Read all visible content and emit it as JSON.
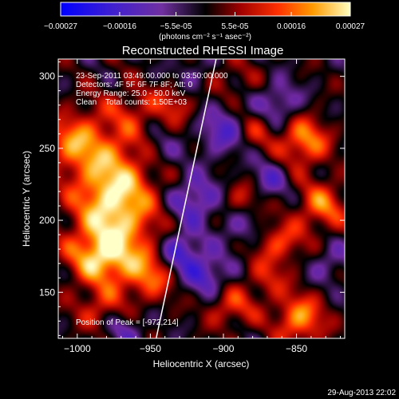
{
  "chart_data": {
    "type": "heatmap",
    "title": "Reconstructed RHESSI Image",
    "xlabel": "Heliocentric X (arcsec)",
    "ylabel": "Heliocentric Y (arcsec)",
    "xlim": [
      -1013,
      -817
    ],
    "ylim": [
      118,
      312
    ],
    "x_ticks": [
      -1000,
      -950,
      -900,
      -850
    ],
    "y_ticks": [
      150,
      200,
      250,
      300
    ],
    "colorbar": {
      "ticks": [
        -0.00027,
        -0.00016,
        -5.5e-05,
        5.5e-05,
        0.00016,
        0.00027
      ],
      "tick_labels": [
        "-0.00027",
        "-0.00016",
        "-5.5e-05",
        "5.5e-05",
        "0.00016",
        "0.00027"
      ],
      "range": [
        -0.00027,
        0.00027
      ],
      "units_label": "(photons cm⁻² s⁻¹ asec⁻²)"
    },
    "info_lines": [
      "23-Sep-2011 03:49:00.000 to 03:50:00.000",
      "Detectors: 4F 5F 6F 7F 8F; Att: 0",
      "Energy Range: 25.0 - 50.0 keV",
      "Clean    Total counts: 1.50E+03"
    ],
    "peak_label": "Position of Peak = [-972,214]",
    "peak": {
      "x": -972,
      "y": 214
    },
    "limb": [
      {
        "x": -946,
        "y": 118
      },
      {
        "x": -905,
        "y": 312
      }
    ],
    "sources": [
      {
        "x": -975,
        "y": 213,
        "sx": 20,
        "sy": 34,
        "a": 1.0
      },
      {
        "x": -1003,
        "y": 255,
        "sx": 14,
        "sy": 14,
        "a": 0.55
      },
      {
        "x": -985,
        "y": 174,
        "sx": 15,
        "sy": 12,
        "a": 0.55
      },
      {
        "x": -950,
        "y": 162,
        "sx": 12,
        "sy": 12,
        "a": 0.5
      },
      {
        "x": -985,
        "y": 138,
        "sx": 12,
        "sy": 10,
        "a": 0.35
      },
      {
        "x": -960,
        "y": 278,
        "sx": 14,
        "sy": 10,
        "a": 0.25
      },
      {
        "x": -932,
        "y": 283,
        "sx": 10,
        "sy": 10,
        "a": 0.4
      },
      {
        "x": -898,
        "y": 298,
        "sx": 14,
        "sy": 10,
        "a": 0.25
      },
      {
        "x": -845,
        "y": 255,
        "sx": 12,
        "sy": 12,
        "a": 0.7
      },
      {
        "x": -833,
        "y": 210,
        "sx": 12,
        "sy": 12,
        "a": 0.6
      },
      {
        "x": -862,
        "y": 185,
        "sx": 12,
        "sy": 10,
        "a": 0.5
      },
      {
        "x": -887,
        "y": 215,
        "sx": 10,
        "sy": 10,
        "a": 0.4
      },
      {
        "x": -848,
        "y": 132,
        "sx": 12,
        "sy": 12,
        "a": 0.7
      },
      {
        "x": -895,
        "y": 140,
        "sx": 12,
        "sy": 10,
        "a": 0.45
      },
      {
        "x": -880,
        "y": 262,
        "sx": 10,
        "sy": 10,
        "a": 0.35
      },
      {
        "x": -870,
        "y": 160,
        "sx": 10,
        "sy": 10,
        "a": 0.35
      },
      {
        "x": -930,
        "y": 178,
        "sx": 10,
        "sy": 10,
        "a": -0.65
      },
      {
        "x": -920,
        "y": 215,
        "sx": 12,
        "sy": 12,
        "a": -0.55
      },
      {
        "x": -912,
        "y": 162,
        "sx": 10,
        "sy": 10,
        "a": -0.55
      },
      {
        "x": -900,
        "y": 262,
        "sx": 12,
        "sy": 12,
        "a": -0.5
      },
      {
        "x": -862,
        "y": 282,
        "sx": 10,
        "sy": 10,
        "a": -0.45
      },
      {
        "x": -870,
        "y": 228,
        "sx": 10,
        "sy": 10,
        "a": -0.4
      },
      {
        "x": -968,
        "y": 125,
        "sx": 10,
        "sy": 10,
        "a": -0.35
      },
      {
        "x": -922,
        "y": 298,
        "sx": 10,
        "sy": 10,
        "a": -0.35
      },
      {
        "x": -828,
        "y": 170,
        "sx": 10,
        "sy": 10,
        "a": -0.3
      },
      {
        "x": -888,
        "y": 195,
        "sx": 10,
        "sy": 10,
        "a": -0.35
      },
      {
        "x": -945,
        "y": 248,
        "sx": 10,
        "sy": 10,
        "a": -0.3
      }
    ]
  },
  "footer": {
    "timestamp": "29-Aug-2013 22:02"
  }
}
